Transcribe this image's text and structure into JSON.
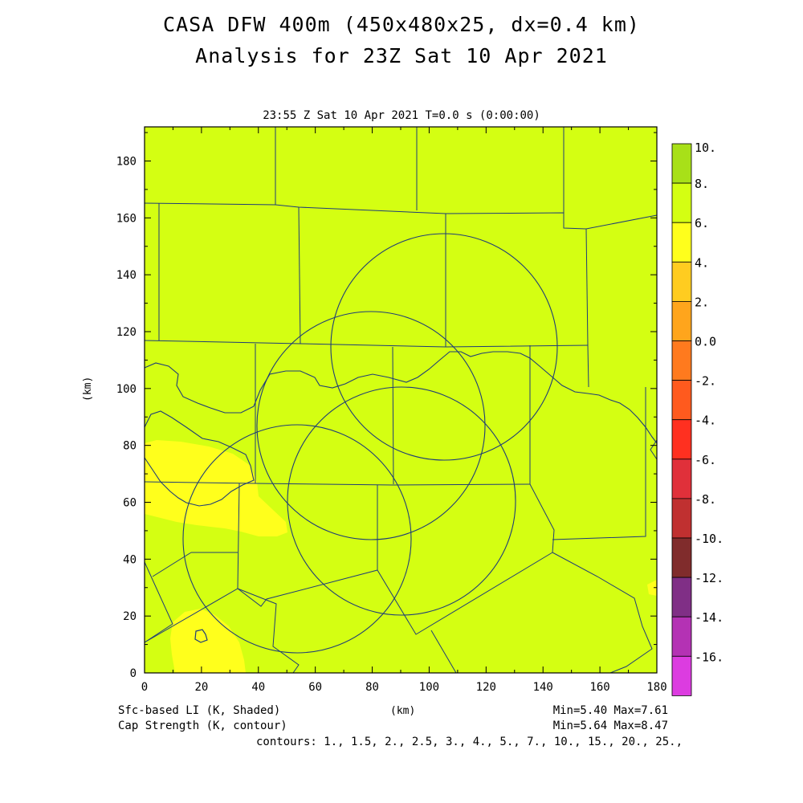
{
  "title_line1": "CASA DFW 400m (450x480x25, dx=0.4 km)",
  "title_line2": "Analysis for 23Z Sat 10 Apr 2021",
  "subtitle": "23:55 Z Sat 10 Apr 2021   T=0.0 s (0:00:00)",
  "axes": {
    "xlabel": "(km)",
    "ylabel": "(km)",
    "xticks": [
      "0",
      "20",
      "40",
      "60",
      "80",
      "100",
      "120",
      "140",
      "160",
      "180"
    ],
    "yticks": [
      "0",
      "20",
      "40",
      "60",
      "80",
      "100",
      "120",
      "140",
      "160",
      "180"
    ],
    "xrange_km": [
      0,
      180
    ],
    "yrange_km": [
      0,
      192
    ]
  },
  "colorbar": {
    "labels": [
      "10.",
      "8.",
      "6.",
      "4.",
      "2.",
      "0.0",
      "-2.",
      "-4.",
      "-6.",
      "-8.",
      "-10.",
      "-12.",
      "-14.",
      "-16."
    ],
    "colors": [
      "#a8e018",
      "#d4ff12",
      "#ffff1c",
      "#ffcc20",
      "#ffa51c",
      "#ff7a1e",
      "#ff5a1e",
      "#ff3020",
      "#e0303a",
      "#c03030",
      "#802c2c",
      "#802f86",
      "#b432b4",
      "#dc3ce0"
    ]
  },
  "footer": {
    "field1": "Sfc-based LI (K, Shaded)",
    "field2": "Cap Strength (K, contour)",
    "stats1": "Min=5.40 Max=7.61",
    "stats2": "Min=5.64 Max=8.47",
    "contours": "contours: 1., 1.5, 2., 2.5, 3., 4., 5., 7., 10., 15., 20., 25.,"
  },
  "map": {
    "background_color": "#d4ff12",
    "yellow_region_color": "#ffff1c",
    "boundary_color": "#1e3c78",
    "radar_range_rings": 4
  }
}
